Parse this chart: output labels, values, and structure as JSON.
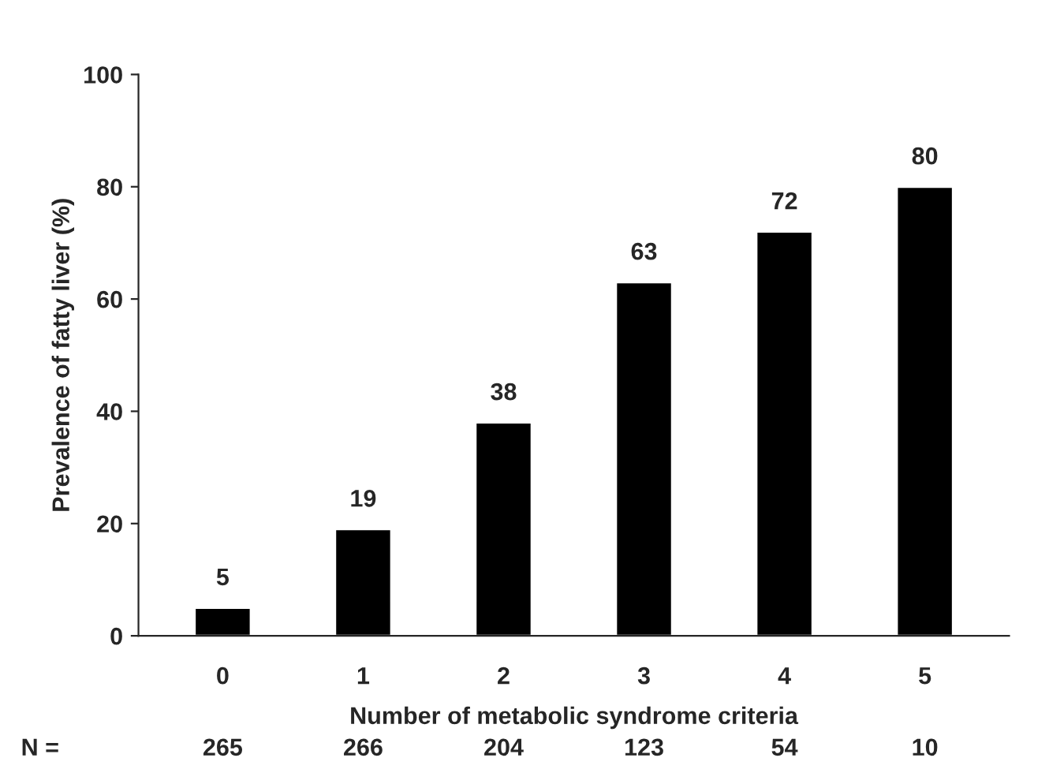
{
  "chart_data": {
    "type": "bar",
    "xlabel": "Number of metabolic syndrome criteria",
    "ylabel": "Prevalence of fatty liver (%)",
    "categories": [
      "0",
      "1",
      "2",
      "3",
      "4",
      "5"
    ],
    "values": [
      5,
      19,
      38,
      63,
      72,
      80
    ],
    "color": "#000000",
    "ylim": [
      0,
      100
    ],
    "yticks": [
      0,
      20,
      40,
      60,
      80,
      100
    ],
    "data_labels": true,
    "grid": false,
    "annotations": [
      "N =",
      "265",
      "266",
      "204",
      "123",
      "54",
      "10"
    ]
  }
}
